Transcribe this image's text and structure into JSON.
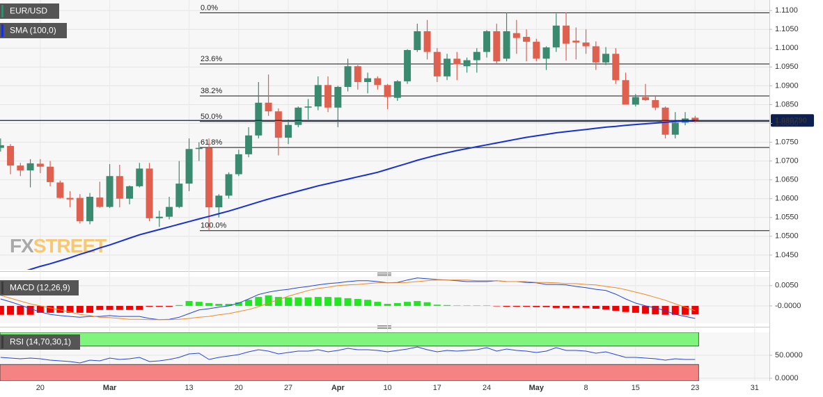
{
  "chart_data": [
    {
      "type": "candlestick",
      "grid": true,
      "categories": [
        null,
        null,
        null,
        null,
        "20",
        null,
        null,
        null,
        null,
        null,
        null,
        "Mar",
        null,
        null,
        null,
        null,
        null,
        null,
        null,
        "13",
        null,
        null,
        null,
        null,
        "20",
        null,
        null,
        null,
        null,
        "27",
        null,
        null,
        null,
        null,
        "Apr",
        null,
        null,
        null,
        null,
        "10",
        null,
        null,
        null,
        null,
        "17",
        null,
        null,
        null,
        null,
        "24",
        null,
        null,
        null,
        null,
        "May",
        null,
        null,
        null,
        null,
        "8",
        null,
        null,
        null,
        null,
        "15",
        null,
        null,
        null,
        null,
        null,
        "23",
        null,
        null,
        null,
        null,
        null,
        "31",
        null
      ],
      "series": [
        {
          "name": "EUR/USD",
          "up_color": "#3a8a70",
          "down_color": "#e0604f",
          "open": [
            1.0735,
            1.074,
            1.0688,
            1.0675,
            1.0693,
            1.0685,
            1.0643,
            1.0602,
            1.0602,
            1.054,
            1.0603,
            1.0578,
            1.066,
            1.06,
            1.0633,
            1.068,
            1.0548,
            1.0552,
            1.0578,
            1.064,
            1.0732,
            1.0735,
            1.0577,
            1.0608,
            1.0665,
            1.0718,
            1.0768,
            1.0855,
            1.0832,
            1.0762,
            1.0796,
            1.0842,
            1.0845,
            1.0902,
            1.0842,
            1.0897,
            1.0952,
            1.091,
            1.092,
            1.0902,
            1.0868,
            1.0912,
            1.0995,
            1.1045,
            1.099,
            1.0925,
            1.0972,
            1.0952,
            1.0968,
            1.099,
            1.1045,
            1.0972,
            1.104,
            1.103,
            1.1017,
            1.0972,
            1.1002,
            1.106,
            1.102,
            1.1015,
            1.1005,
            1.0962,
            1.0985,
            1.0915,
            1.085,
            1.087,
            1.0862,
            1.0842,
            1.077,
            1.0802,
            1.0815,
            null,
            null,
            null,
            null,
            null,
            null,
            null
          ],
          "high": [
            1.076,
            1.0745,
            1.0695,
            1.0705,
            1.0705,
            1.07,
            1.0648,
            1.062,
            1.0612,
            1.0615,
            1.0645,
            1.0692,
            1.069,
            1.0635,
            1.0695,
            1.0695,
            1.0568,
            1.0605,
            1.07,
            1.076,
            1.075,
            1.076,
            1.0612,
            1.067,
            1.073,
            1.079,
            1.091,
            1.093,
            1.084,
            1.081,
            1.0845,
            1.0865,
            1.0925,
            1.0925,
            1.09,
            1.0972,
            1.0955,
            1.0935,
            1.0925,
            1.0905,
            1.0915,
            1.0997,
            1.1065,
            1.1075,
            1.1,
            1.0985,
            1.099,
            1.0975,
            1.1,
            1.1048,
            1.1065,
            1.1095,
            1.1075,
            1.105,
            1.1025,
            1.1005,
            1.1092,
            1.1095,
            1.1055,
            1.105,
            1.1018,
            1.1003,
            1.1,
            1.0935,
            1.0878,
            1.0905,
            1.0875,
            1.0845,
            1.083,
            1.083,
            1.082,
            null,
            null,
            null,
            null,
            null,
            null,
            null
          ],
          "low": [
            1.0725,
            1.0665,
            1.066,
            1.063,
            1.0668,
            1.0633,
            1.06,
            1.0577,
            1.0534,
            1.0532,
            1.0576,
            1.0575,
            1.0577,
            1.0585,
            1.063,
            1.054,
            1.0525,
            1.0545,
            1.0575,
            1.062,
            1.07,
            1.0515,
            1.055,
            1.06,
            1.066,
            1.071,
            1.076,
            1.082,
            1.0715,
            1.0745,
            1.079,
            1.081,
            1.0835,
            1.083,
            1.079,
            1.0885,
            1.089,
            1.088,
            1.089,
            1.0838,
            1.086,
            1.0905,
            1.099,
            1.097,
            1.091,
            1.0915,
            1.0915,
            1.0935,
            1.0935,
            1.0975,
            1.096,
            1.0965,
            1.0985,
            1.0965,
            1.0965,
            1.0942,
            1.099,
            1.0967,
            1.097,
            1.0985,
            1.0942,
            1.0955,
            1.0905,
            1.085,
            1.0845,
            1.086,
            1.0835,
            1.076,
            1.076,
            1.0795,
            1.0802,
            null,
            null,
            null,
            null,
            null,
            null,
            null
          ],
          "close": [
            1.0742,
            1.0688,
            1.0675,
            1.0694,
            1.0685,
            1.0644,
            1.0602,
            1.0598,
            1.054,
            1.0605,
            1.0578,
            1.066,
            1.06,
            1.0633,
            1.068,
            1.0548,
            1.0552,
            1.0578,
            1.064,
            1.0732,
            1.0735,
            1.0577,
            1.0608,
            1.0665,
            1.0718,
            1.0768,
            1.0855,
            1.0832,
            1.0762,
            1.0796,
            1.0842,
            1.0845,
            1.0902,
            1.0842,
            1.0897,
            1.0952,
            1.091,
            1.092,
            1.0902,
            1.087,
            1.0912,
            1.0995,
            1.1045,
            1.099,
            1.0925,
            1.0972,
            1.0957,
            1.0968,
            1.099,
            1.1045,
            1.0965,
            1.1045,
            1.1027,
            1.1017,
            1.0972,
            1.1002,
            1.106,
            1.1012,
            1.1015,
            1.1005,
            1.0962,
            1.0985,
            1.0915,
            1.085,
            1.087,
            1.0862,
            1.0842,
            1.077,
            1.0802,
            1.0813,
            1.0808,
            null,
            null,
            null,
            null,
            null,
            null,
            null
          ]
        }
      ],
      "overlays": [
        {
          "name": "SMA (100,0)",
          "color": "#1630d8",
          "values": [
            1.039,
            1.0396,
            1.0404,
            1.0412,
            1.042,
            1.0427,
            1.0435,
            1.0443,
            1.0452,
            1.046,
            1.0469,
            1.0477,
            1.0486,
            1.0495,
            1.0504,
            1.0511,
            1.0518,
            1.0525,
            1.0532,
            1.0539,
            1.0546,
            1.0553,
            1.056,
            1.0567,
            1.0575,
            1.0583,
            1.0591,
            1.0599,
            1.0606,
            1.0613,
            1.062,
            1.0627,
            1.0634,
            1.064,
            1.0646,
            1.0652,
            1.0658,
            1.0664,
            1.067,
            1.0678,
            1.0686,
            1.0694,
            1.0702,
            1.0709,
            1.0716,
            1.0722,
            1.0728,
            1.0733,
            1.0738,
            1.0743,
            1.0748,
            1.0753,
            1.0758,
            1.0763,
            1.0767,
            1.0771,
            1.0775,
            1.0778,
            1.0781,
            1.0784,
            1.0787,
            1.079,
            1.0792,
            1.0795,
            1.0797,
            1.0799,
            1.0801,
            1.0803,
            1.0805,
            1.0806,
            1.0808,
            null,
            null,
            null,
            null,
            null,
            null,
            null
          ]
        }
      ],
      "fibonacci": [
        {
          "label": "0.0%",
          "value": 1.1094
        },
        {
          "label": "23.6%",
          "value": 1.0958
        },
        {
          "label": "38.2%",
          "value": 1.0873
        },
        {
          "label": "50.0%",
          "value": 1.0805
        },
        {
          "label": "61.8%",
          "value": 1.0736
        },
        {
          "label": "100.0%",
          "value": 1.0515
        }
      ],
      "last_price": {
        "value": 1.08079,
        "label": "1.080790",
        "color": "#0d1f4f"
      },
      "watermark": [
        "FX",
        "STREET"
      ],
      "ylim": [
        1.0411,
        1.1128
      ],
      "yticks": [
        {
          "value": 1.045,
          "label": "1.0450"
        },
        {
          "value": 1.05,
          "label": "1.0500"
        },
        {
          "value": 1.055,
          "label": "1.0550"
        },
        {
          "value": 1.06,
          "label": "1.0600"
        },
        {
          "value": 1.065,
          "label": "1.0650"
        },
        {
          "value": 1.07,
          "label": "1.0700"
        },
        {
          "value": 1.075,
          "label": "1.0750"
        },
        {
          "value": 1.08,
          "label": "1.0800"
        },
        {
          "value": 1.085,
          "label": "1.0850"
        },
        {
          "value": 1.09,
          "label": "1.0900"
        },
        {
          "value": 1.095,
          "label": "1.0950"
        },
        {
          "value": 1.1,
          "label": "1.1000"
        },
        {
          "value": 1.105,
          "label": "1.1050"
        },
        {
          "value": 1.11,
          "label": "1.1100"
        }
      ]
    },
    {
      "type": "macd",
      "title": "MACD (12,26,9)",
      "grid": true,
      "histogram": {
        "up_color": "#22e622",
        "down_color": "#f00000",
        "values": [
          -0.0022,
          -0.0022,
          -0.0022,
          -0.0022,
          -0.0017,
          -0.0017,
          -0.0017,
          -0.0017,
          -0.0017,
          -0.0017,
          -0.001,
          -0.001,
          -0.001,
          -0.001,
          -0.001,
          -0.0002,
          -0.0002,
          -0.0002,
          0.0002,
          0.0012,
          0.001,
          0.0007,
          0.0005,
          0.0005,
          0.0009,
          0.0015,
          0.0022,
          0.0026,
          0.0022,
          0.0021,
          0.0021,
          0.0021,
          0.0022,
          0.0022,
          0.0021,
          0.0019,
          0.0017,
          0.0015,
          0.001,
          0.0005,
          0.0007,
          0.001,
          0.0012,
          0.0009,
          0.0003,
          0.0002,
          0.0001,
          0.0001,
          0.0001,
          0.0001,
          -0.0001,
          -0.0002,
          -0.0002,
          -0.0002,
          -0.0003,
          -0.0003,
          -0.0005,
          -0.0005,
          -0.0005,
          -0.0005,
          -0.0007,
          -0.0009,
          -0.0012,
          -0.0015,
          -0.0017,
          -0.0019,
          -0.0021,
          -0.0022,
          -0.0022,
          -0.0022,
          -0.0021,
          null,
          null,
          null,
          null,
          null,
          null,
          null
        ]
      },
      "macd_line": {
        "color": "#2346d6",
        "values": [
          0.0017,
          0.001,
          0.0002,
          -0.0007,
          -0.0015,
          -0.0021,
          -0.0024,
          -0.0026,
          -0.0028,
          -0.0026,
          -0.0026,
          -0.0024,
          -0.0026,
          -0.0026,
          -0.0026,
          -0.0031,
          -0.0034,
          -0.0033,
          -0.0028,
          -0.0019,
          -0.001,
          -0.0007,
          -0.0003,
          0.0,
          0.0007,
          0.0017,
          0.0028,
          0.0034,
          0.0038,
          0.0041,
          0.0045,
          0.0048,
          0.0052,
          0.0055,
          0.0057,
          0.006,
          0.0062,
          0.0062,
          0.006,
          0.0057,
          0.0058,
          0.0064,
          0.0069,
          0.0067,
          0.0065,
          0.0064,
          0.0062,
          0.006,
          0.006,
          0.006,
          0.0062,
          0.006,
          0.006,
          0.0058,
          0.0057,
          0.0053,
          0.0053,
          0.0052,
          0.0048,
          0.0045,
          0.0041,
          0.0038,
          0.0029,
          0.0017,
          0.0007,
          0.0,
          -0.0005,
          -0.0012,
          -0.0021,
          -0.0026,
          -0.0031,
          null,
          null,
          null,
          null,
          null,
          null,
          null
        ]
      },
      "signal_line": {
        "color": "#f08a24",
        "values": [
          0.0026,
          0.0019,
          0.0012,
          0.0005,
          0.0,
          -0.0005,
          -0.001,
          -0.0015,
          -0.0021,
          -0.0024,
          -0.0028,
          -0.0029,
          -0.0031,
          -0.0033,
          -0.0033,
          -0.0034,
          -0.0034,
          -0.0034,
          -0.0033,
          -0.0031,
          -0.0028,
          -0.0026,
          -0.0022,
          -0.0019,
          -0.0014,
          -0.0009,
          -0.0002,
          0.0007,
          0.0015,
          0.0024,
          0.0031,
          0.0038,
          0.0043,
          0.0046,
          0.005,
          0.0052,
          0.0053,
          0.0055,
          0.0057,
          0.0057,
          0.0057,
          0.0058,
          0.006,
          0.0062,
          0.0064,
          0.0064,
          0.0064,
          0.0064,
          0.0062,
          0.0062,
          0.0062,
          0.006,
          0.006,
          0.006,
          0.0058,
          0.0058,
          0.0057,
          0.0055,
          0.0055,
          0.0053,
          0.0052,
          0.0048,
          0.0045,
          0.004,
          0.0034,
          0.0028,
          0.0021,
          0.0014,
          0.0005,
          -0.0003,
          -0.0012,
          null,
          null,
          null,
          null,
          null,
          null,
          null
        ]
      },
      "ylim": [
        -0.0043,
        0.0072
      ],
      "yticks": [
        {
          "value": 0,
          "label": "-0.0000"
        },
        {
          "value": 0.005,
          "label": "0.0050"
        }
      ]
    },
    {
      "type": "rsi",
      "title": "RSI (14,70,30,1)",
      "grid": true,
      "color": "#2346d6",
      "bands": {
        "upper": 70,
        "lower": 30,
        "upper_color": "#80f57d",
        "lower_color": "#f58383"
      },
      "values": [
        45.5,
        43.9,
        42.4,
        43.9,
        42.4,
        39.4,
        37.9,
        36.4,
        33.3,
        39.4,
        37.9,
        43.9,
        40.9,
        42.4,
        45.5,
        36.4,
        37.9,
        40.9,
        45.5,
        53.0,
        54.5,
        40.9,
        45.5,
        48.5,
        51.5,
        57.6,
        62.1,
        59.1,
        53.0,
        56.1,
        59.1,
        59.1,
        62.1,
        57.6,
        60.6,
        65.2,
        62.1,
        62.1,
        60.6,
        57.6,
        60.6,
        63.6,
        68.2,
        62.1,
        57.6,
        60.6,
        59.1,
        60.6,
        62.1,
        66.7,
        59.1,
        63.6,
        60.6,
        59.1,
        56.1,
        59.1,
        66.7,
        60.6,
        60.6,
        59.1,
        54.5,
        57.6,
        51.5,
        45.5,
        45.5,
        43.9,
        42.4,
        39.4,
        42.4,
        40.9,
        40.9,
        null,
        null,
        null,
        null,
        null,
        null,
        null
      ],
      "ylim": [
        -6,
        100
      ],
      "yticks": [
        {
          "value": 0,
          "label": "0.0000"
        },
        {
          "value": 50,
          "label": "50.0000"
        }
      ]
    }
  ]
}
